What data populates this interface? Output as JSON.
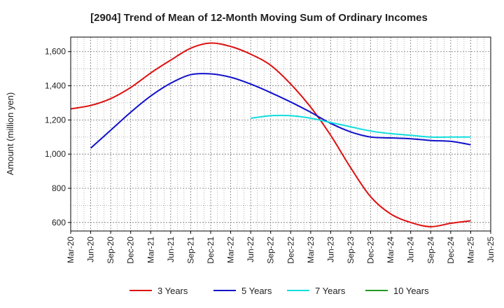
{
  "chart_data": {
    "type": "line",
    "title": "[2904]  Trend of Mean of 12-Month Moving Sum of Ordinary Incomes",
    "xlabel": "",
    "ylabel": "Amount (million yen)",
    "x_ticks": [
      "Mar-20",
      "Jun-20",
      "Sep-20",
      "Dec-20",
      "Mar-21",
      "Jun-21",
      "Sep-21",
      "Dec-21",
      "Mar-22",
      "Jun-22",
      "Sep-22",
      "Dec-22",
      "Mar-23",
      "Jun-23",
      "Sep-23",
      "Dec-23",
      "Mar-24",
      "Jun-24",
      "Sep-24",
      "Dec-24",
      "Mar-25",
      "Jun-25"
    ],
    "y_ticks": [
      600,
      800,
      1000,
      1200,
      1400,
      1600
    ],
    "y_tick_labels": [
      "600",
      "800",
      "1,000",
      "1,200",
      "1,400",
      "1,600"
    ],
    "ylim": [
      550,
      1685
    ],
    "grid": true,
    "legend_position": "bottom",
    "series": [
      {
        "name": "3 Years",
        "color": "#dd1111",
        "start_index": 0,
        "values": [
          1265,
          1285,
          1325,
          1390,
          1475,
          1550,
          1620,
          1650,
          1630,
          1585,
          1520,
          1410,
          1275,
          1110,
          920,
          750,
          650,
          600,
          575,
          595,
          610
        ]
      },
      {
        "name": "5 Years",
        "color": "#1111cc",
        "start_index": 1,
        "values": [
          1035,
          1140,
          1245,
          1340,
          1415,
          1465,
          1470,
          1450,
          1410,
          1360,
          1305,
          1245,
          1180,
          1130,
          1100,
          1095,
          1090,
          1080,
          1075,
          1055
        ]
      },
      {
        "name": "7 Years",
        "color": "#11dddd",
        "start_index": 9,
        "values": [
          1210,
          1225,
          1225,
          1210,
          1185,
          1160,
          1135,
          1120,
          1110,
          1100,
          1100,
          1100
        ]
      },
      {
        "name": "10 Years",
        "color": "#229922",
        "start_index": 0,
        "values": []
      }
    ]
  }
}
